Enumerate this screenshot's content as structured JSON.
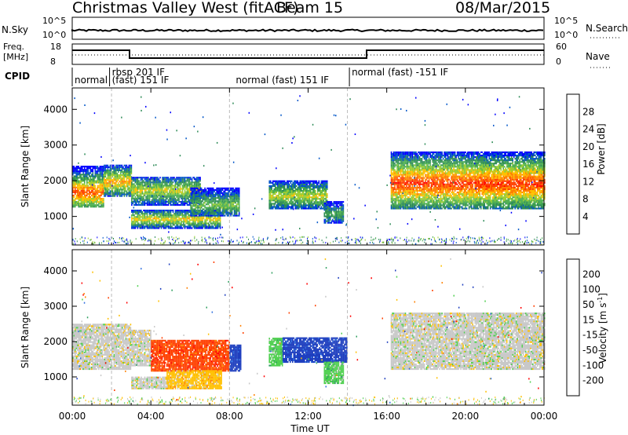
{
  "header": {
    "radar": "Christmas Valley West (fitACF)",
    "beam": "Beam 15",
    "date": "08/Mar/2015"
  },
  "top_panels": {
    "nsky_label": "N.Sky",
    "nsky_ticks": [
      "10^5",
      "10^0"
    ],
    "nsearch_label": "N.Search",
    "nsearch_ticks": [
      "10^5",
      "10^0"
    ],
    "freq_label_1": "Freq.",
    "freq_label_2": "[MHz]",
    "freq_ticks": [
      "18",
      "8"
    ],
    "nave_label": "Nave",
    "nave_ticks": [
      "60",
      "0"
    ],
    "cpid_label": "CPID",
    "cpid_segments": [
      {
        "label": "normal",
        "start": 0,
        "end": 1.9,
        "row": 1
      },
      {
        "label": "rbsp 201 IF",
        "start": 1.9,
        "end": 8.2,
        "row": 0
      },
      {
        "label": "(fast) 151 IF",
        "start": 1.9,
        "end": 8.2,
        "row": 1
      },
      {
        "label": "normal (fast) 151 IF",
        "start": 8.2,
        "end": 14.1,
        "row": 1
      },
      {
        "label": "normal (fast) -151 IF",
        "start": 14.1,
        "end": 24,
        "row": 0
      }
    ]
  },
  "chart_data": [
    {
      "type": "heatmap",
      "name": "power",
      "ylabel": "Slant Range [km]",
      "ylim": [
        200,
        4600
      ],
      "xlim": [
        0,
        24
      ],
      "yticks": [
        "1000",
        "2000",
        "3000",
        "4000"
      ],
      "colorbar_label": "Power [dB]",
      "colorbar_ticks": [
        "4",
        "8",
        "12",
        "16",
        "20",
        "24",
        "28"
      ],
      "colorbar_range": [
        0,
        32
      ],
      "colors": [
        "#0000ff",
        "#0055c8",
        "#2e8b57",
        "#4caf50",
        "#9acd32",
        "#ffc000",
        "#ff7f00",
        "#ff4000",
        "#ff0000"
      ],
      "regions": [
        {
          "t0": 0.0,
          "t1": 1.6,
          "r0": 1250,
          "r1": 2400,
          "center": 1650,
          "peak": 26
        },
        {
          "t0": 1.6,
          "t1": 3.0,
          "r0": 1550,
          "r1": 2450,
          "center": 1950,
          "peak": 22
        },
        {
          "t0": 3.0,
          "t1": 6.5,
          "r0": 1300,
          "r1": 2100,
          "center": 1700,
          "peak": 18
        },
        {
          "t0": 3.0,
          "t1": 7.5,
          "r0": 650,
          "r1": 1150,
          "center": 900,
          "peak": 20
        },
        {
          "t0": 6.0,
          "t1": 8.5,
          "r0": 1000,
          "r1": 1800,
          "center": 1300,
          "peak": 14
        },
        {
          "t0": 10.0,
          "t1": 13.0,
          "r0": 1200,
          "r1": 2000,
          "center": 1550,
          "peak": 18
        },
        {
          "t0": 12.8,
          "t1": 13.8,
          "r0": 800,
          "r1": 1400,
          "center": 1050,
          "peak": 12
        },
        {
          "t0": 16.2,
          "t1": 24.0,
          "r0": 1200,
          "r1": 2800,
          "center": 1900,
          "peak": 28
        }
      ]
    },
    {
      "type": "heatmap",
      "name": "velocity",
      "ylabel": "Slant Range [km]",
      "ylim": [
        200,
        4600
      ],
      "xlim": [
        0,
        24
      ],
      "yticks": [
        "1000",
        "2000",
        "3000",
        "4000"
      ],
      "colorbar_label": "Velocity [m s-1]",
      "colorbar_ticks": [
        "200",
        "100",
        "50",
        "15",
        "-15",
        "-50",
        "-100",
        "-200"
      ],
      "colors": [
        "#1f3fbf",
        "#2f6fdf",
        "#2f9f5f",
        "#50d050",
        "#c8c8c8",
        "#ffc000",
        "#ff8000",
        "#ff4000",
        "#ff0000"
      ],
      "regions": [
        {
          "t0": 0.0,
          "t1": 3.0,
          "r0": 1200,
          "r1": 2500,
          "class": 4
        },
        {
          "t0": 3.0,
          "t1": 4.0,
          "r0": 1300,
          "r1": 2300,
          "class": 4
        },
        {
          "t0": 4.0,
          "t1": 8.0,
          "r0": 1150,
          "r1": 2050,
          "class": 7
        },
        {
          "t0": 3.0,
          "t1": 4.8,
          "r0": 650,
          "r1": 1000,
          "class": 4
        },
        {
          "t0": 4.8,
          "t1": 7.6,
          "r0": 650,
          "r1": 1150,
          "class": 5
        },
        {
          "t0": 8.0,
          "t1": 8.6,
          "r0": 1150,
          "r1": 1900,
          "class": 0
        },
        {
          "t0": 10.0,
          "t1": 10.7,
          "r0": 1300,
          "r1": 2100,
          "class": 3
        },
        {
          "t0": 10.7,
          "t1": 14.0,
          "r0": 1400,
          "r1": 2100,
          "class": 0
        },
        {
          "t0": 12.8,
          "t1": 13.8,
          "r0": 800,
          "r1": 1400,
          "class": 3
        },
        {
          "t0": 16.2,
          "t1": 24.0,
          "r0": 1200,
          "r1": 2800,
          "class": 4
        }
      ]
    }
  ],
  "x_axis": {
    "ticks": [
      "00:00",
      "04:00",
      "08:00",
      "12:00",
      "16:00",
      "20:00",
      "00:00"
    ],
    "label": "Time UT"
  }
}
